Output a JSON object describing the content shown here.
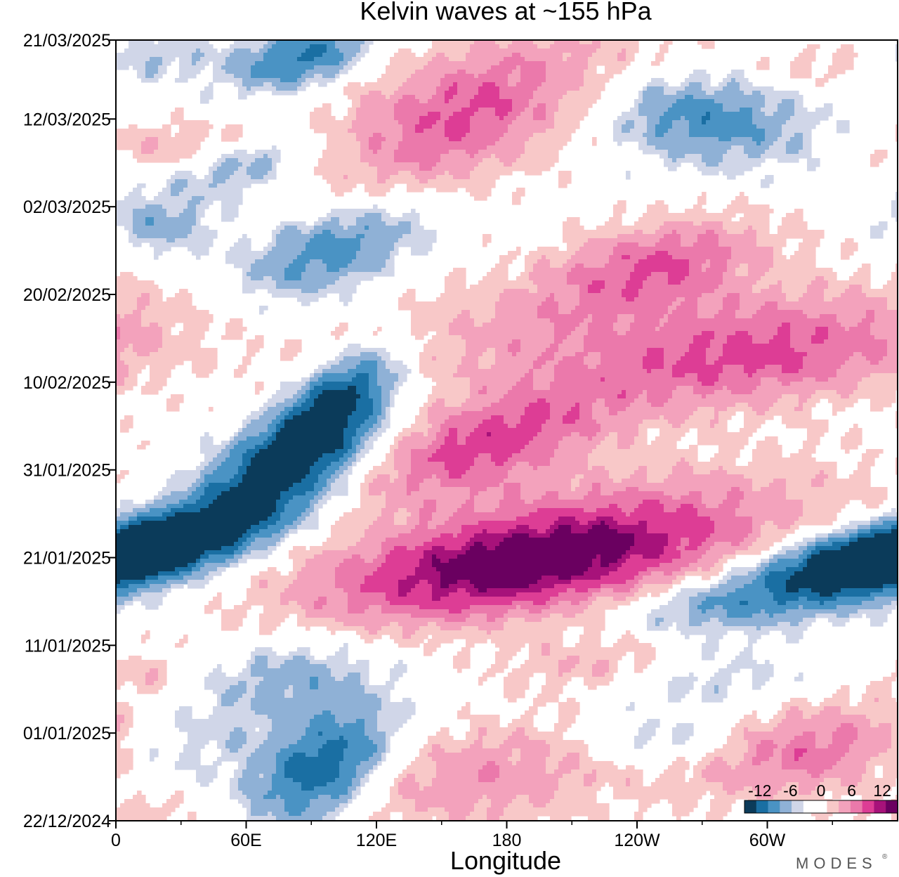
{
  "title": "Kelvin waves at ~155 hPa",
  "brand": "MODES",
  "brand_mark": "®",
  "colors": {
    "neg": [
      "#0b3b5a",
      "#1a6fa3",
      "#4a93c4",
      "#8fb1d6",
      "#d0d6e8"
    ],
    "pos": [
      "#f8c8c8",
      "#f3a2bc",
      "#eb79ab",
      "#dd3d95",
      "#a7127a",
      "#6a0060"
    ],
    "zero": "#ffffff"
  },
  "chart_data": {
    "type": "heatmap",
    "title": "Kelvin waves at ~155 hPa",
    "xlabel": "Longitude",
    "ylabel": "",
    "x_ticks": [
      "0",
      "60E",
      "120E",
      "180",
      "120W",
      "60W"
    ],
    "x_tick_values": [
      0,
      60,
      120,
      180,
      240,
      300
    ],
    "xlim": [
      0,
      360
    ],
    "y_ticks": [
      "22/12/2024",
      "01/01/2025",
      "11/01/2025",
      "21/01/2025",
      "31/01/2025",
      "10/02/2025",
      "20/02/2025",
      "02/03/2025",
      "12/03/2025",
      "21/03/2025"
    ],
    "y_tick_values": [
      "2024-12-22",
      "2025-01-01",
      "2025-01-11",
      "2025-01-21",
      "2025-01-31",
      "2025-02-10",
      "2025-02-20",
      "2025-03-02",
      "2025-03-12",
      "2025-03-21"
    ],
    "ylim": [
      "2024-12-22",
      "2025-03-21"
    ],
    "colorbar": {
      "labels": [
        "-12",
        "-6",
        "0",
        "6",
        "12"
      ],
      "label_values": [
        -12,
        -6,
        0,
        6,
        12
      ],
      "range": [
        -15,
        15
      ]
    },
    "features": [
      {
        "lon": 5,
        "date": "2025-01-21",
        "value": -13,
        "lon_width": 55,
        "day_width": 6,
        "slope_deg_per_day": 5
      },
      {
        "lon": 50,
        "date": "2025-01-25",
        "value": -10,
        "lon_width": 50,
        "day_width": 6,
        "slope_deg_per_day": 5
      },
      {
        "lon": 80,
        "date": "2025-02-01",
        "value": -14,
        "lon_width": 45,
        "day_width": 8,
        "slope_deg_per_day": 4
      },
      {
        "lon": 102,
        "date": "2025-02-08",
        "value": -13,
        "lon_width": 30,
        "day_width": 8,
        "slope_deg_per_day": 3
      },
      {
        "lon": 100,
        "date": "2025-02-25",
        "value": -8,
        "lon_width": 50,
        "day_width": 8,
        "slope_deg_per_day": 4
      },
      {
        "lon": 60,
        "date": "2025-03-07",
        "value": -6,
        "lon_width": 40,
        "day_width": 5,
        "slope_deg_per_day": 4
      },
      {
        "lon": 85,
        "date": "2025-03-19",
        "value": -10,
        "lon_width": 40,
        "day_width": 5,
        "slope_deg_per_day": 3
      },
      {
        "lon": 15,
        "date": "2025-03-19",
        "value": -4,
        "lon_width": 40,
        "day_width": 4,
        "slope_deg_per_day": 0
      },
      {
        "lon": 20,
        "date": "2025-02-28",
        "value": -5,
        "lon_width": 40,
        "day_width": 5,
        "slope_deg_per_day": 0
      },
      {
        "lon": 95,
        "date": "2024-12-28",
        "value": -12,
        "lon_width": 40,
        "day_width": 9,
        "slope_deg_per_day": 2
      },
      {
        "lon": 80,
        "date": "2025-01-07",
        "value": -5,
        "lon_width": 55,
        "day_width": 7,
        "slope_deg_per_day": 2
      },
      {
        "lon": 30,
        "date": "2024-12-31",
        "value": -3,
        "lon_width": 50,
        "day_width": 6,
        "slope_deg_per_day": 0
      },
      {
        "lon": 270,
        "date": "2025-03-12",
        "value": -8,
        "lon_width": 65,
        "day_width": 7,
        "slope_deg_per_day": -2
      },
      {
        "lon": 345,
        "date": "2025-01-21",
        "value": -12,
        "lon_width": 60,
        "day_width": 5,
        "slope_deg_per_day": 6
      },
      {
        "lon": 290,
        "date": "2025-01-16",
        "value": -7,
        "lon_width": 70,
        "day_width": 5,
        "slope_deg_per_day": 6
      },
      {
        "lon": 270,
        "date": "2025-01-07",
        "value": -3,
        "lon_width": 60,
        "day_width": 5,
        "slope_deg_per_day": 2
      },
      {
        "lon": 250,
        "date": "2024-12-31",
        "value": -4,
        "lon_width": 50,
        "day_width": 4,
        "slope_deg_per_day": 0
      },
      {
        "lon": 185,
        "date": "2025-01-20",
        "value": 14,
        "lon_width": 110,
        "day_width": 9,
        "slope_deg_per_day": 7
      },
      {
        "lon": 170,
        "date": "2025-02-03",
        "value": 10,
        "lon_width": 65,
        "day_width": 9,
        "slope_deg_per_day": 5
      },
      {
        "lon": 230,
        "date": "2025-01-25",
        "value": 5,
        "lon_width": 140,
        "day_width": 11,
        "slope_deg_per_day": 7
      },
      {
        "lon": 210,
        "date": "2025-02-17",
        "value": 5,
        "lon_width": 130,
        "day_width": 11,
        "slope_deg_per_day": 7
      },
      {
        "lon": 300,
        "date": "2025-02-13",
        "value": 9,
        "lon_width": 110,
        "day_width": 9,
        "slope_deg_per_day": 6
      },
      {
        "lon": 250,
        "date": "2025-02-24",
        "value": 7,
        "lon_width": 60,
        "day_width": 7,
        "slope_deg_per_day": 4
      },
      {
        "lon": 170,
        "date": "2025-03-14",
        "value": 7,
        "lon_width": 90,
        "day_width": 13,
        "slope_deg_per_day": 4
      },
      {
        "lon": 150,
        "date": "2025-03-10",
        "value": 3,
        "lon_width": 50,
        "day_width": 12,
        "slope_deg_per_day": 3
      },
      {
        "lon": 170,
        "date": "2024-12-27",
        "value": 6,
        "lon_width": 90,
        "day_width": 9,
        "slope_deg_per_day": 3
      },
      {
        "lon": 320,
        "date": "2024-12-30",
        "value": 8,
        "lon_width": 70,
        "day_width": 8,
        "slope_deg_per_day": 4
      },
      {
        "lon": 220,
        "date": "2025-01-09",
        "value": 4,
        "lon_width": 60,
        "day_width": 5,
        "slope_deg_per_day": 2
      },
      {
        "lon": 30,
        "date": "2025-03-09",
        "value": 4,
        "lon_width": 60,
        "day_width": 4,
        "slope_deg_per_day": 0
      },
      {
        "lon": 15,
        "date": "2024-12-23",
        "value": 3,
        "lon_width": 40,
        "day_width": 3,
        "slope_deg_per_day": 0
      },
      {
        "lon": 15,
        "date": "2025-01-08",
        "value": 3,
        "lon_width": 30,
        "day_width": 3,
        "slope_deg_per_day": 0
      },
      {
        "lon": 330,
        "date": "2025-03-18",
        "value": 3,
        "lon_width": 50,
        "day_width": 4,
        "slope_deg_per_day": 0
      }
    ]
  }
}
